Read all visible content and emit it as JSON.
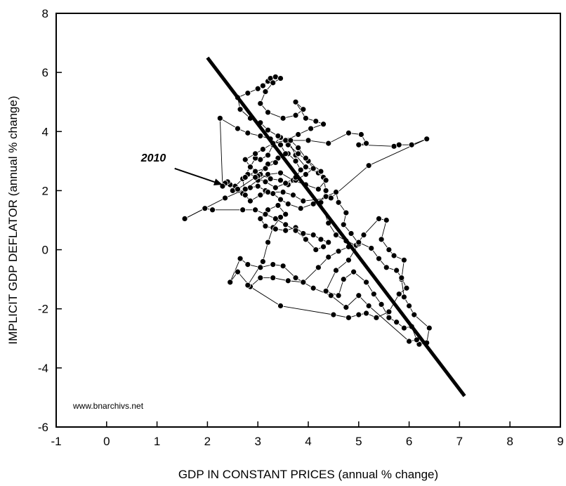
{
  "chart_data": {
    "type": "scatter",
    "xlabel": "GDP IN CONSTANT PRICES (annual % change)",
    "ylabel": "IMPLICIT GDP DEFLATOR (annual % change)",
    "xlim": [
      -1,
      9
    ],
    "ylim": [
      -6,
      8
    ],
    "x_ticks": [
      -1,
      0,
      1,
      2,
      3,
      4,
      5,
      6,
      7,
      8,
      9
    ],
    "y_ticks": [
      -6,
      -4,
      -2,
      0,
      2,
      4,
      6,
      8
    ],
    "x_tick_labels": [
      "-1",
      "0",
      "1",
      "2",
      "3",
      "4",
      "5",
      "6",
      "7",
      "8",
      "9"
    ],
    "y_tick_labels": [
      "-6",
      "-4",
      "-2",
      "0",
      "2",
      "4",
      "6",
      "8"
    ],
    "grid": false,
    "connected": true,
    "points": [
      [
        6.2,
        -3.2
      ],
      [
        6.35,
        -3.15
      ],
      [
        6.4,
        -2.65
      ],
      [
        6.1,
        -2.2
      ],
      [
        6.0,
        -1.9
      ],
      [
        5.9,
        -1.6
      ],
      [
        5.85,
        -1.0
      ],
      [
        5.9,
        -0.35
      ],
      [
        5.7,
        -0.2
      ],
      [
        5.6,
        0.0
      ],
      [
        5.45,
        0.35
      ],
      [
        5.55,
        1.0
      ],
      [
        5.4,
        1.05
      ],
      [
        5.1,
        0.5
      ],
      [
        4.95,
        0.15
      ],
      [
        4.75,
        0.3
      ],
      [
        4.55,
        0.5
      ],
      [
        4.4,
        0.9
      ],
      [
        4.25,
        1.6
      ],
      [
        4.35,
        2.0
      ],
      [
        4.3,
        2.45
      ],
      [
        4.2,
        2.6
      ],
      [
        3.95,
        2.8
      ],
      [
        3.75,
        3.2
      ],
      [
        3.6,
        3.7
      ],
      [
        3.45,
        3.8
      ],
      [
        3.3,
        3.55
      ],
      [
        3.2,
        3.2
      ],
      [
        3.05,
        3.05
      ],
      [
        2.95,
        3.1
      ],
      [
        2.85,
        2.8
      ],
      [
        2.7,
        2.4
      ],
      [
        2.55,
        2.15
      ],
      [
        2.45,
        2.2
      ],
      [
        2.4,
        2.3
      ],
      [
        2.5,
        2.0
      ],
      [
        2.7,
        1.9
      ],
      [
        2.85,
        2.1
      ],
      [
        3.0,
        2.15
      ],
      [
        3.15,
        2.0
      ],
      [
        3.3,
        1.9
      ],
      [
        3.45,
        1.7
      ],
      [
        3.6,
        1.55
      ],
      [
        3.85,
        1.4
      ],
      [
        4.1,
        1.55
      ],
      [
        4.35,
        1.8
      ],
      [
        4.55,
        1.95
      ],
      [
        4.6,
        1.6
      ],
      [
        4.75,
        1.25
      ],
      [
        4.7,
        0.85
      ],
      [
        4.85,
        0.55
      ],
      [
        5.0,
        0.2
      ],
      [
        4.8,
        -0.35
      ],
      [
        4.55,
        -0.7
      ],
      [
        4.35,
        -1.4
      ],
      [
        4.6,
        -1.55
      ],
      [
        4.7,
        -1.0
      ],
      [
        4.9,
        -0.75
      ],
      [
        5.15,
        -1.1
      ],
      [
        5.3,
        -1.5
      ],
      [
        5.45,
        -1.85
      ],
      [
        5.6,
        -2.3
      ],
      [
        5.75,
        -2.45
      ],
      [
        5.9,
        -2.65
      ],
      [
        6.05,
        -2.6
      ],
      [
        6.15,
        -3.05
      ],
      [
        6.0,
        -3.1
      ],
      [
        5.2,
        -1.9
      ],
      [
        5.0,
        -1.55
      ],
      [
        4.75,
        -1.95
      ],
      [
        4.45,
        -1.55
      ],
      [
        4.1,
        -1.3
      ],
      [
        3.75,
        -0.95
      ],
      [
        3.5,
        -0.55
      ],
      [
        3.3,
        -0.5
      ],
      [
        3.05,
        -0.6
      ],
      [
        2.8,
        -0.5
      ],
      [
        2.65,
        -0.3
      ],
      [
        2.45,
        -1.1
      ],
      [
        2.6,
        -0.75
      ],
      [
        2.85,
        -1.25
      ],
      [
        3.05,
        -0.95
      ],
      [
        3.3,
        -0.95
      ],
      [
        3.6,
        -1.05
      ],
      [
        3.9,
        -1.1
      ],
      [
        4.2,
        -0.6
      ],
      [
        4.4,
        -0.25
      ],
      [
        4.6,
        -0.05
      ],
      [
        4.8,
        0.1
      ],
      [
        5.0,
        0.25
      ],
      [
        5.25,
        0.05
      ],
      [
        5.4,
        -0.3
      ],
      [
        5.55,
        -0.6
      ],
      [
        5.75,
        -0.7
      ],
      [
        5.85,
        -0.95
      ],
      [
        5.95,
        -1.3
      ],
      [
        5.8,
        -1.5
      ],
      [
        5.6,
        -2.1
      ],
      [
        5.35,
        -2.3
      ],
      [
        5.15,
        -2.15
      ],
      [
        5.0,
        -2.2
      ],
      [
        4.8,
        -2.3
      ],
      [
        4.5,
        -2.2
      ],
      [
        3.45,
        -1.9
      ],
      [
        2.8,
        -1.2
      ],
      [
        3.1,
        -0.4
      ],
      [
        3.2,
        0.25
      ],
      [
        3.3,
        0.75
      ],
      [
        3.45,
        1.1
      ],
      [
        3.55,
        1.2
      ],
      [
        3.4,
        1.5
      ],
      [
        3.2,
        1.35
      ],
      [
        3.05,
        1.05
      ],
      [
        3.15,
        0.8
      ],
      [
        3.35,
        0.7
      ],
      [
        3.55,
        0.65
      ],
      [
        3.75,
        0.75
      ],
      [
        3.9,
        0.55
      ],
      [
        4.1,
        0.5
      ],
      [
        4.25,
        0.35
      ],
      [
        4.4,
        0.25
      ],
      [
        4.3,
        0.1
      ],
      [
        4.15,
        0.0
      ],
      [
        3.95,
        0.35
      ],
      [
        3.75,
        0.65
      ],
      [
        3.55,
        0.85
      ],
      [
        3.35,
        1.05
      ],
      [
        3.15,
        1.2
      ],
      [
        2.95,
        1.35
      ],
      [
        2.7,
        1.35
      ],
      [
        2.1,
        1.35
      ],
      [
        1.95,
        1.4
      ],
      [
        1.55,
        1.05
      ],
      [
        2.35,
        1.75
      ],
      [
        2.75,
        2.05
      ],
      [
        3.0,
        2.35
      ],
      [
        3.2,
        2.55
      ],
      [
        3.45,
        2.6
      ],
      [
        3.7,
        2.35
      ],
      [
        3.95,
        2.2
      ],
      [
        4.2,
        2.05
      ],
      [
        4.35,
        2.35
      ],
      [
        4.25,
        2.65
      ],
      [
        4.0,
        3.0
      ],
      [
        3.8,
        3.25
      ],
      [
        3.6,
        3.55
      ],
      [
        3.4,
        3.85
      ],
      [
        3.2,
        4.05
      ],
      [
        3.05,
        4.3
      ],
      [
        2.85,
        4.45
      ],
      [
        2.65,
        4.75
      ],
      [
        2.6,
        5.15
      ],
      [
        2.8,
        5.3
      ],
      [
        3.0,
        5.45
      ],
      [
        3.1,
        5.55
      ],
      [
        3.2,
        5.7
      ],
      [
        3.25,
        5.8
      ],
      [
        3.35,
        5.85
      ],
      [
        3.45,
        5.8
      ],
      [
        3.3,
        5.65
      ],
      [
        3.15,
        5.35
      ],
      [
        3.05,
        4.95
      ],
      [
        3.2,
        4.65
      ],
      [
        3.5,
        4.45
      ],
      [
        3.75,
        4.55
      ],
      [
        3.9,
        4.75
      ],
      [
        3.75,
        5.0
      ],
      [
        3.95,
        4.45
      ],
      [
        4.15,
        4.35
      ],
      [
        4.3,
        4.25
      ],
      [
        4.05,
        4.1
      ],
      [
        3.8,
        3.9
      ],
      [
        3.55,
        3.7
      ],
      [
        3.3,
        3.6
      ],
      [
        3.1,
        3.4
      ],
      [
        2.95,
        3.25
      ],
      [
        2.75,
        3.05
      ],
      [
        2.85,
        2.8
      ],
      [
        3.05,
        2.55
      ],
      [
        3.25,
        2.4
      ],
      [
        3.45,
        2.35
      ],
      [
        3.6,
        2.2
      ],
      [
        3.75,
        2.35
      ],
      [
        3.95,
        2.55
      ],
      [
        4.1,
        2.75
      ],
      [
        3.95,
        3.1
      ],
      [
        3.8,
        3.45
      ],
      [
        3.65,
        3.7
      ],
      [
        4.0,
        3.7
      ],
      [
        4.4,
        3.6
      ],
      [
        4.8,
        3.95
      ],
      [
        5.05,
        3.9
      ],
      [
        5.15,
        3.6
      ],
      [
        5.0,
        3.55
      ],
      [
        5.7,
        3.5
      ],
      [
        5.8,
        3.55
      ],
      [
        6.05,
        3.55
      ],
      [
        6.35,
        3.75
      ],
      [
        5.2,
        2.85
      ],
      [
        4.45,
        1.75
      ],
      [
        3.9,
        1.65
      ],
      [
        3.7,
        1.85
      ],
      [
        3.5,
        1.95
      ],
      [
        3.2,
        1.95
      ],
      [
        3.05,
        1.85
      ],
      [
        2.85,
        1.65
      ],
      [
        2.75,
        1.85
      ],
      [
        2.7,
        2.4
      ],
      [
        2.8,
        2.55
      ],
      [
        3.0,
        2.5
      ],
      [
        3.2,
        2.9
      ],
      [
        3.4,
        3.1
      ],
      [
        3.6,
        3.25
      ],
      [
        3.75,
        3.0
      ],
      [
        3.85,
        2.7
      ],
      [
        3.75,
        2.45
      ],
      [
        3.55,
        2.25
      ],
      [
        3.35,
        2.1
      ],
      [
        3.15,
        2.3
      ],
      [
        2.95,
        2.45
      ],
      [
        2.6,
        2.05
      ],
      [
        2.35,
        2.25
      ],
      [
        2.3,
        2.15
      ],
      [
        2.25,
        4.45
      ],
      [
        2.6,
        4.1
      ],
      [
        2.8,
        3.95
      ],
      [
        3.05,
        3.85
      ],
      [
        3.25,
        3.75
      ],
      [
        3.45,
        3.55
      ],
      [
        3.55,
        3.25
      ],
      [
        3.35,
        2.95
      ],
      [
        3.15,
        2.75
      ],
      [
        2.95,
        2.65
      ],
      [
        2.75,
        2.45
      ]
    ],
    "trendline": {
      "x": [
        2.0,
        7.1
      ],
      "y": [
        6.5,
        -4.95
      ]
    },
    "annotations": [
      {
        "text": "2010",
        "arrow_from": [
          1.35,
          2.75
        ],
        "arrow_to": [
          2.3,
          2.2
        ]
      }
    ],
    "source_note": "www.bnarchivs.net"
  }
}
